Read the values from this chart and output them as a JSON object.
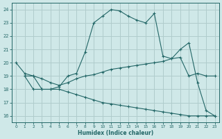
{
  "xlabel": "Humidex (Indice chaleur)",
  "bg_color": "#cfe8e8",
  "grid_color": "#b0cccc",
  "line_color": "#226666",
  "line1_x": [
    0,
    1,
    2,
    3,
    4,
    5,
    6,
    7,
    8,
    9,
    10,
    11,
    12,
    13,
    14,
    15,
    16,
    17,
    18,
    19,
    20,
    21,
    22,
    23
  ],
  "line1_y": [
    20,
    19.2,
    19.0,
    18.0,
    18.0,
    18.2,
    19.0,
    19.2,
    20.8,
    23.0,
    23.5,
    24.0,
    23.9,
    23.5,
    23.2,
    23.0,
    23.7,
    20.5,
    20.3,
    21.0,
    21.5,
    18.5,
    16.4,
    16.0
  ],
  "line2_x": [
    1,
    2,
    3,
    4,
    5,
    6,
    7,
    8,
    9,
    10,
    11,
    12,
    13,
    14,
    15,
    16,
    17,
    18,
    19,
    20,
    21,
    22,
    23
  ],
  "line2_y": [
    19.0,
    19.0,
    18.8,
    18.5,
    18.3,
    18.5,
    18.8,
    19.0,
    19.1,
    19.3,
    19.5,
    19.6,
    19.7,
    19.8,
    19.9,
    20.0,
    20.1,
    20.3,
    20.4,
    19.0,
    19.2,
    19.0,
    19.0
  ],
  "line3_x": [
    1,
    2,
    3,
    4,
    5,
    6,
    7,
    8,
    9,
    10,
    11,
    12,
    13,
    14,
    15,
    16,
    17,
    18,
    19,
    20,
    21,
    22,
    23
  ],
  "line3_y": [
    19.0,
    18.0,
    18.0,
    18.0,
    18.0,
    17.8,
    17.6,
    17.4,
    17.2,
    17.0,
    16.9,
    16.8,
    16.7,
    16.6,
    16.5,
    16.4,
    16.3,
    16.2,
    16.1,
    16.0,
    16.0,
    16.0,
    16.0
  ],
  "xlim": [
    -0.5,
    23.5
  ],
  "ylim": [
    15.5,
    24.5
  ],
  "yticks": [
    16,
    17,
    18,
    19,
    20,
    21,
    22,
    23,
    24
  ],
  "xticks": [
    0,
    1,
    2,
    3,
    4,
    5,
    6,
    7,
    8,
    9,
    10,
    11,
    12,
    13,
    14,
    15,
    16,
    17,
    18,
    19,
    20,
    21,
    22,
    23
  ]
}
